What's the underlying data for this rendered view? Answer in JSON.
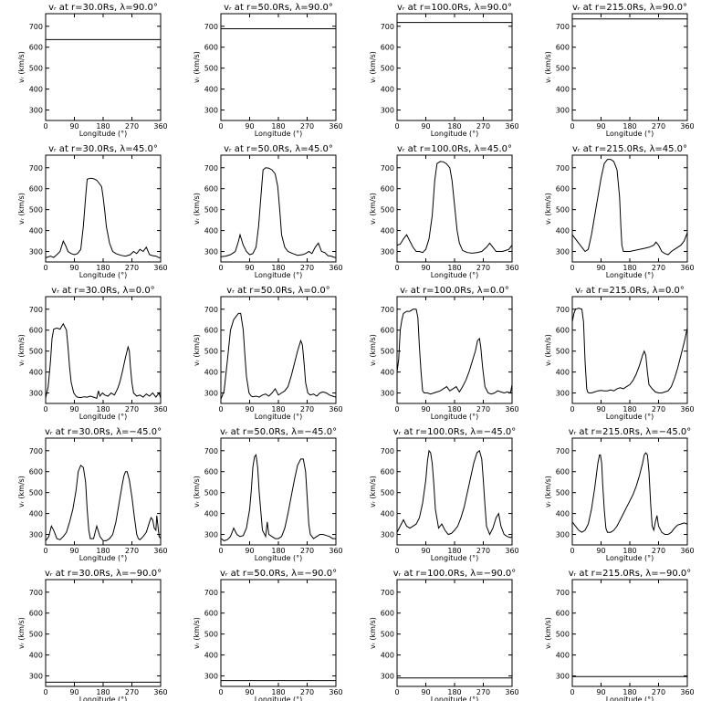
{
  "chart_data": {
    "type": "line",
    "xlabel": "Longitude (°)",
    "ylabel": "vᵣ (km/s)",
    "xlim": [
      0,
      360
    ],
    "ylim": [
      250,
      760
    ],
    "xticks": [
      "0",
      "90",
      "180",
      "270",
      "360"
    ],
    "yticks": [
      "300",
      "400",
      "500",
      "600",
      "700"
    ],
    "panels": [
      {
        "title": "vᵣ at r=30.0Rs, λ=90.0°",
        "x": [
          0,
          360
        ],
        "y": [
          636,
          636
        ]
      },
      {
        "title": "vᵣ at r=50.0Rs, λ=90.0°",
        "x": [
          0,
          360
        ],
        "y": [
          688,
          688
        ]
      },
      {
        "title": "vᵣ at r=100.0Rs, λ=90.0°",
        "x": [
          0,
          360
        ],
        "y": [
          718,
          718
        ]
      },
      {
        "title": "vᵣ at r=215.0Rs, λ=90.0°",
        "x": [
          0,
          360
        ],
        "y": [
          735,
          735
        ]
      },
      {
        "title": "vᵣ at r=30.0Rs, λ=45.0°",
        "x": [
          0,
          15,
          25,
          35,
          45,
          55,
          62,
          70,
          80,
          90,
          100,
          110,
          118,
          125,
          130,
          140,
          150,
          160,
          168,
          175,
          180,
          186,
          190,
          200,
          210,
          220,
          235,
          250,
          265,
          275,
          285,
          295,
          305,
          315,
          325,
          335,
          345,
          355,
          360
        ],
        "y": [
          270,
          278,
          272,
          285,
          300,
          350,
          330,
          300,
          290,
          285,
          290,
          310,
          420,
          560,
          645,
          650,
          648,
          640,
          625,
          610,
          560,
          480,
          420,
          340,
          300,
          290,
          282,
          278,
          285,
          300,
          290,
          310,
          300,
          320,
          285,
          280,
          278,
          270,
          272
        ]
      },
      {
        "title": "vᵣ at r=50.0Rs, λ=45.0°",
        "x": [
          0,
          15,
          30,
          45,
          55,
          60,
          70,
          80,
          90,
          100,
          110,
          118,
          125,
          132,
          140,
          150,
          160,
          170,
          178,
          185,
          190,
          200,
          210,
          225,
          240,
          255,
          265,
          275,
          285,
          295,
          305,
          315,
          325,
          335,
          345,
          355,
          360
        ],
        "y": [
          275,
          278,
          285,
          300,
          350,
          380,
          330,
          300,
          285,
          290,
          320,
          420,
          560,
          690,
          700,
          698,
          690,
          670,
          610,
          480,
          380,
          320,
          300,
          290,
          282,
          285,
          290,
          300,
          290,
          320,
          340,
          300,
          295,
          280,
          278,
          272,
          272
        ]
      },
      {
        "title": "vᵣ at r=100.0Rs, λ=45.0°",
        "x": [
          0,
          10,
          20,
          30,
          40,
          50,
          60,
          70,
          80,
          90,
          100,
          110,
          118,
          125,
          135,
          145,
          155,
          165,
          172,
          180,
          188,
          195,
          205,
          220,
          235,
          250,
          265,
          280,
          290,
          300,
          310,
          320,
          330,
          340,
          350,
          360
        ],
        "y": [
          330,
          335,
          360,
          380,
          350,
          320,
          300,
          300,
          295,
          310,
          360,
          470,
          640,
          720,
          730,
          728,
          718,
          700,
          640,
          520,
          400,
          340,
          305,
          295,
          292,
          295,
          300,
          320,
          340,
          320,
          300,
          300,
          300,
          305,
          310,
          330
        ]
      },
      {
        "title": "vᵣ at r=215.0Rs, λ=45.0°",
        "x": [
          0,
          10,
          20,
          30,
          40,
          50,
          60,
          70,
          80,
          90,
          100,
          110,
          120,
          130,
          140,
          148,
          152,
          155,
          160,
          170,
          180,
          195,
          210,
          225,
          240,
          255,
          262,
          270,
          280,
          290,
          300,
          310,
          320,
          330,
          340,
          350,
          360
        ],
        "y": [
          380,
          360,
          340,
          320,
          300,
          310,
          380,
          470,
          560,
          650,
          720,
          740,
          740,
          730,
          690,
          560,
          420,
          330,
          300,
          300,
          300,
          305,
          310,
          315,
          320,
          330,
          345,
          330,
          300,
          290,
          285,
          300,
          310,
          320,
          330,
          350,
          390
        ]
      },
      {
        "title": "vᵣ at r=30.0Rs, λ=0.0°",
        "x": [
          0,
          8,
          15,
          20,
          25,
          35,
          45,
          55,
          65,
          70,
          75,
          80,
          88,
          95,
          100,
          110,
          120,
          130,
          140,
          150,
          160,
          165,
          170,
          178,
          185,
          195,
          205,
          215,
          225,
          232,
          240,
          250,
          258,
          262,
          265,
          270,
          275,
          285,
          295,
          305,
          315,
          325,
          335,
          345,
          355,
          360
        ],
        "y": [
          275,
          330,
          450,
          560,
          605,
          610,
          605,
          630,
          600,
          520,
          420,
          350,
          300,
          285,
          280,
          278,
          282,
          280,
          285,
          280,
          275,
          310,
          285,
          300,
          290,
          285,
          300,
          290,
          320,
          350,
          400,
          470,
          520,
          500,
          430,
          350,
          300,
          285,
          290,
          280,
          295,
          285,
          300,
          280,
          300,
          275
        ]
      },
      {
        "title": "vᵣ at r=50.0Rs, λ=0.0°",
        "x": [
          0,
          10,
          20,
          30,
          40,
          50,
          55,
          62,
          70,
          75,
          80,
          88,
          95,
          100,
          110,
          120,
          130,
          140,
          150,
          160,
          170,
          180,
          190,
          200,
          210,
          220,
          230,
          240,
          250,
          255,
          260,
          265,
          272,
          280,
          290,
          300,
          310,
          320,
          330,
          340,
          350,
          360
        ],
        "y": [
          270,
          310,
          450,
          600,
          650,
          670,
          680,
          680,
          600,
          480,
          380,
          300,
          285,
          282,
          285,
          280,
          290,
          295,
          285,
          300,
          320,
          290,
          300,
          310,
          330,
          380,
          440,
          500,
          550,
          530,
          450,
          350,
          300,
          290,
          295,
          285,
          300,
          305,
          300,
          290,
          285,
          280
        ]
      },
      {
        "title": "vᵣ at r=100.0Rs, λ=0.0°",
        "x": [
          0,
          5,
          10,
          15,
          20,
          30,
          40,
          50,
          60,
          65,
          70,
          75,
          80,
          85,
          95,
          105,
          115,
          125,
          135,
          145,
          155,
          165,
          175,
          185,
          195,
          205,
          215,
          225,
          235,
          245,
          252,
          258,
          262,
          268,
          275,
          285,
          295,
          305,
          315,
          325,
          335,
          345,
          355,
          360
        ],
        "y": [
          400,
          460,
          600,
          650,
          680,
          690,
          690,
          700,
          700,
          660,
          520,
          400,
          310,
          300,
          300,
          295,
          300,
          305,
          310,
          320,
          330,
          310,
          320,
          330,
          305,
          330,
          360,
          400,
          450,
          500,
          550,
          560,
          520,
          420,
          330,
          300,
          295,
          300,
          310,
          305,
          300,
          305,
          300,
          340
        ]
      },
      {
        "title": "vᵣ at r=215.0Rs, λ=0.0°",
        "x": [
          0,
          5,
          10,
          20,
          30,
          35,
          40,
          45,
          48,
          52,
          56,
          60,
          70,
          80,
          90,
          100,
          110,
          120,
          130,
          140,
          150,
          160,
          170,
          180,
          190,
          200,
          210,
          220,
          225,
          230,
          235,
          240,
          250,
          260,
          270,
          280,
          290,
          300,
          310,
          320,
          330,
          340,
          350,
          360
        ],
        "y": [
          640,
          680,
          700,
          705,
          700,
          640,
          450,
          320,
          305,
          300,
          300,
          300,
          305,
          310,
          312,
          310,
          310,
          315,
          310,
          320,
          325,
          320,
          330,
          340,
          360,
          390,
          430,
          480,
          500,
          480,
          400,
          340,
          320,
          305,
          300,
          300,
          305,
          310,
          330,
          370,
          420,
          480,
          540,
          610
        ]
      },
      {
        "title": "vᵣ at r=30.0Rs, λ=−45.0°",
        "x": [
          0,
          10,
          18,
          25,
          35,
          45,
          55,
          65,
          75,
          85,
          95,
          102,
          110,
          118,
          125,
          130,
          135,
          140,
          150,
          160,
          170,
          180,
          190,
          200,
          210,
          220,
          230,
          240,
          245,
          250,
          255,
          262,
          270,
          278,
          285,
          290,
          295,
          305,
          315,
          325,
          330,
          335,
          340,
          345,
          348,
          355,
          360
        ],
        "y": [
          270,
          290,
          340,
          320,
          280,
          275,
          290,
          310,
          360,
          420,
          510,
          600,
          630,
          620,
          550,
          420,
          320,
          280,
          280,
          340,
          290,
          270,
          270,
          280,
          300,
          360,
          450,
          540,
          580,
          600,
          600,
          560,
          480,
          380,
          300,
          280,
          275,
          290,
          310,
          360,
          380,
          370,
          330,
          320,
          390,
          290,
          280
        ]
      },
      {
        "title": "vᵣ at r=50.0Rs, λ=−45.0°",
        "x": [
          0,
          10,
          20,
          30,
          40,
          50,
          60,
          70,
          80,
          90,
          95,
          100,
          105,
          110,
          115,
          120,
          130,
          140,
          145,
          150,
          160,
          170,
          180,
          190,
          200,
          210,
          220,
          230,
          240,
          250,
          258,
          265,
          270,
          275,
          280,
          290,
          300,
          310,
          320,
          330,
          340,
          350,
          360
        ],
        "y": [
          280,
          270,
          275,
          290,
          330,
          300,
          290,
          295,
          330,
          420,
          510,
          620,
          670,
          680,
          620,
          500,
          320,
          290,
          360,
          300,
          290,
          280,
          280,
          290,
          330,
          400,
          480,
          560,
          630,
          660,
          660,
          600,
          480,
          350,
          300,
          280,
          290,
          300,
          300,
          295,
          290,
          280,
          280
        ]
      },
      {
        "title": "vᵣ at r=100.0Rs, λ=−45.0°",
        "x": [
          0,
          10,
          20,
          30,
          40,
          50,
          60,
          70,
          80,
          90,
          95,
          100,
          105,
          110,
          115,
          120,
          130,
          140,
          150,
          160,
          170,
          180,
          190,
          200,
          210,
          220,
          230,
          240,
          250,
          258,
          265,
          270,
          275,
          280,
          290,
          300,
          310,
          318,
          325,
          335,
          345,
          355,
          360
        ],
        "y": [
          310,
          340,
          370,
          340,
          330,
          340,
          350,
          380,
          450,
          560,
          650,
          700,
          690,
          640,
          540,
          420,
          330,
          350,
          320,
          300,
          305,
          320,
          340,
          380,
          430,
          500,
          570,
          640,
          690,
          700,
          660,
          560,
          440,
          340,
          300,
          330,
          380,
          400,
          340,
          300,
          290,
          285,
          290
        ]
      },
      {
        "title": "vᵣ at r=215.0Rs, λ=−45.0°",
        "x": [
          0,
          10,
          20,
          30,
          40,
          50,
          60,
          70,
          80,
          85,
          88,
          92,
          95,
          100,
          105,
          110,
          120,
          130,
          140,
          150,
          160,
          170,
          180,
          190,
          200,
          210,
          220,
          225,
          230,
          235,
          240,
          245,
          250,
          255,
          260,
          265,
          270,
          280,
          290,
          300,
          310,
          320,
          330,
          340,
          350,
          360
        ],
        "y": [
          360,
          340,
          320,
          310,
          320,
          350,
          420,
          520,
          640,
          680,
          680,
          640,
          540,
          420,
          330,
          310,
          310,
          320,
          340,
          370,
          400,
          430,
          460,
          490,
          530,
          580,
          640,
          680,
          690,
          680,
          600,
          450,
          340,
          320,
          360,
          390,
          340,
          310,
          300,
          300,
          310,
          330,
          345,
          350,
          355,
          350
        ]
      },
      {
        "title": "vᵣ at r=30.0Rs, λ=−90.0°",
        "x": [
          0,
          360
        ],
        "y": [
          270,
          270
        ]
      },
      {
        "title": "vᵣ at r=50.0Rs, λ=−90.0°",
        "x": [
          0,
          360
        ],
        "y": [
          278,
          278
        ]
      },
      {
        "title": "vᵣ at r=100.0Rs, λ=−90.0°",
        "x": [
          0,
          360
        ],
        "y": [
          290,
          290
        ]
      },
      {
        "title": "vᵣ at r=215.0Rs, λ=−90.0°",
        "x": [
          0,
          360
        ],
        "y": [
          297,
          297
        ]
      }
    ]
  }
}
